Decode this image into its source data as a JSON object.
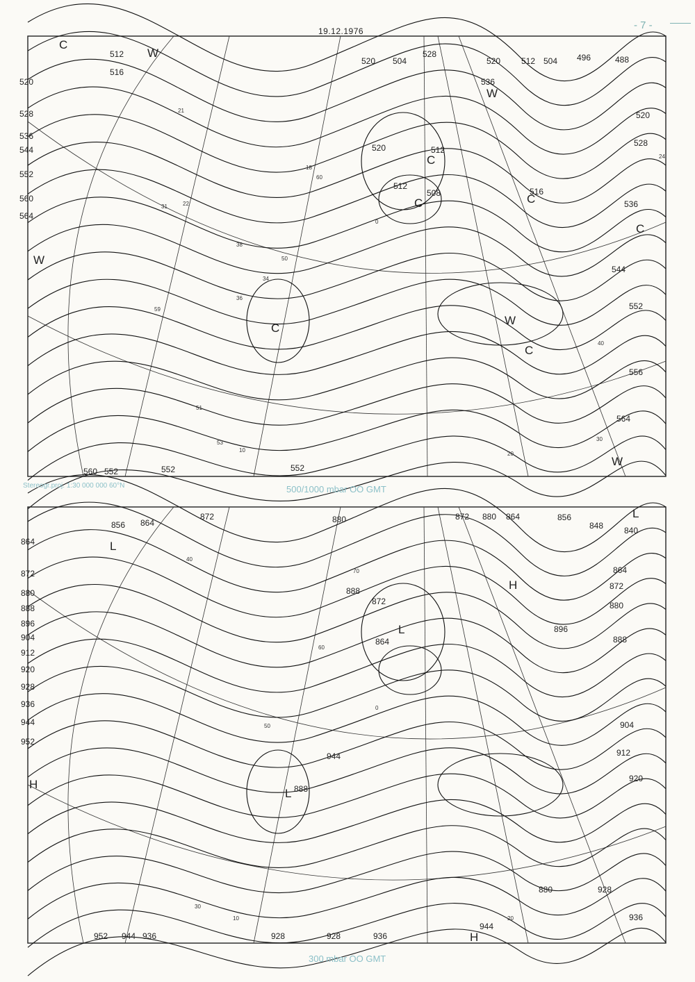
{
  "page_number": "- 7 -",
  "date": "19.12.1976",
  "projection_note": "Stereogr.proj. 1:30 000 000    60°N",
  "map_top": {
    "caption": "500/1000 mbar  OO GMT",
    "contour_labels": [
      "512",
      "516",
      "520",
      "528",
      "536",
      "544",
      "552",
      "560",
      "564",
      "520",
      "528",
      "520",
      "512",
      "504",
      "496",
      "488",
      "536",
      "508",
      "512",
      "520",
      "516",
      "504",
      "512",
      "520",
      "528",
      "536",
      "544",
      "552",
      "556",
      "564",
      "560",
      "552",
      "552",
      "552"
    ],
    "thickness_labels": [
      "60",
      "50",
      "40",
      "30",
      "20",
      "10",
      "0",
      "18",
      "21",
      "22",
      "31",
      "36",
      "34",
      "38",
      "59",
      "51",
      "53",
      "24"
    ],
    "centers": [
      "C",
      "C",
      "C",
      "C",
      "W",
      "W",
      "C",
      "W",
      "C",
      "W",
      "C",
      "W"
    ]
  },
  "map_bottom": {
    "caption": "300 mbar  OO GMT",
    "contour_labels": [
      "856",
      "864",
      "872",
      "880",
      "888",
      "896",
      "904",
      "912",
      "920",
      "928",
      "936",
      "944",
      "952",
      "864",
      "872",
      "880",
      "872",
      "864",
      "888",
      "872",
      "880",
      "864",
      "856",
      "848",
      "840",
      "864",
      "872",
      "880",
      "888",
      "896",
      "904",
      "912",
      "920",
      "928",
      "936",
      "944",
      "952",
      "944",
      "936",
      "928",
      "928",
      "936",
      "944",
      "888",
      "880",
      "912"
    ],
    "isotach_labels": [
      "70",
      "60",
      "50",
      "40",
      "30",
      "20",
      "10",
      "0"
    ],
    "centers": [
      "L",
      "L",
      "H",
      "L",
      "H",
      "L",
      "H"
    ]
  }
}
